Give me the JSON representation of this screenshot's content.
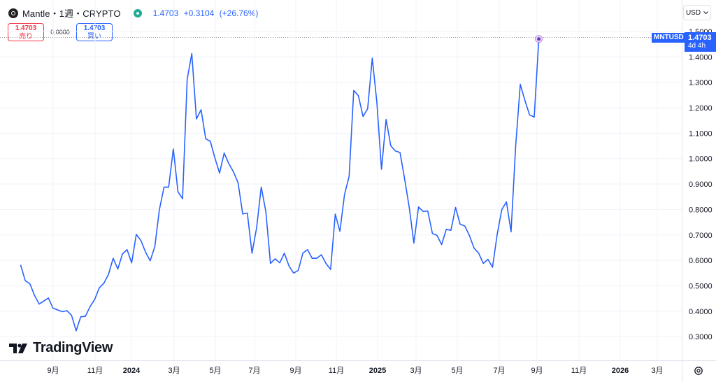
{
  "header": {
    "symbol": "Mantle・1週・CRYPTO",
    "open_change": "1.4703",
    "change_abs": "+0.3104",
    "change_pct": "(+26.76%)"
  },
  "trade": {
    "sell_price": "1.4703",
    "sell_label": "売り",
    "spread": "0.0000",
    "buy_price": "1.4703",
    "buy_label": "買い"
  },
  "currency": {
    "label": "USD",
    "icon": "chevron-down-icon"
  },
  "price_tag": {
    "symbol": "MNTUSD",
    "price": "1.4703",
    "countdown": "4d 4h"
  },
  "branding": {
    "name": "TradingView"
  },
  "colors": {
    "line": "#2962ff",
    "grid": "#f0f3fa",
    "sell": "#f23645",
    "buy": "#2962ff",
    "status": "#22ab94"
  },
  "chart_data": {
    "type": "line",
    "title": "",
    "xlabel": "",
    "ylabel": "",
    "grid": true,
    "ylim": [
      0.26,
      1.56
    ],
    "y_ticks": [
      "1.5000",
      "1.4000",
      "1.3000",
      "1.2000",
      "1.1000",
      "1.0000",
      "0.9000",
      "0.8000",
      "0.7000",
      "0.6000",
      "0.5000",
      "0.4000",
      "0.3000"
    ],
    "x_ticks": [
      {
        "label": "9月",
        "bold": false
      },
      {
        "label": "11月",
        "bold": false
      },
      {
        "label": "2024",
        "bold": true
      },
      {
        "label": "3月",
        "bold": false
      },
      {
        "label": "5月",
        "bold": false
      },
      {
        "label": "7月",
        "bold": false
      },
      {
        "label": "9月",
        "bold": false
      },
      {
        "label": "11月",
        "bold": false
      },
      {
        "label": "2025",
        "bold": true
      },
      {
        "label": "3月",
        "bold": false
      },
      {
        "label": "5月",
        "bold": false
      },
      {
        "label": "7月",
        "bold": false
      },
      {
        "label": "9月",
        "bold": false
      },
      {
        "label": "11月",
        "bold": false
      },
      {
        "label": "2026",
        "bold": true
      },
      {
        "label": "3月",
        "bold": false
      }
    ],
    "x_range_weeks": 138,
    "series": [
      {
        "values": [
          0.582,
          0.52,
          0.508,
          0.462,
          0.428,
          0.44,
          0.452,
          0.412,
          0.405,
          0.398,
          0.402,
          0.384,
          0.323,
          0.378,
          0.38,
          0.418,
          0.446,
          0.492,
          0.51,
          0.545,
          0.608,
          0.566,
          0.625,
          0.642,
          0.59,
          0.702,
          0.678,
          0.632,
          0.598,
          0.654,
          0.8,
          0.888,
          0.888,
          1.038,
          0.87,
          0.842,
          1.312,
          1.413,
          1.156,
          1.192,
          1.078,
          1.068,
          1.002,
          0.943,
          1.022,
          0.98,
          0.948,
          0.905,
          0.782,
          0.786,
          0.628,
          0.728,
          0.888,
          0.792,
          0.588,
          0.606,
          0.59,
          0.628,
          0.578,
          0.55,
          0.56,
          0.628,
          0.642,
          0.608,
          0.608,
          0.622,
          0.588,
          0.564,
          0.782,
          0.714,
          0.858,
          0.93,
          1.268,
          1.248,
          1.166,
          1.196,
          1.395,
          1.22,
          0.958,
          1.154,
          1.05,
          1.03,
          1.024,
          0.92,
          0.808,
          0.668,
          0.81,
          0.792,
          0.794,
          0.706,
          0.698,
          0.662,
          0.722,
          0.718,
          0.808,
          0.742,
          0.735,
          0.698,
          0.648,
          0.628,
          0.588,
          0.604,
          0.573,
          0.703,
          0.8,
          0.83,
          0.712,
          1.05,
          1.292,
          1.228,
          1.172,
          1.163,
          1.4703
        ]
      }
    ]
  }
}
